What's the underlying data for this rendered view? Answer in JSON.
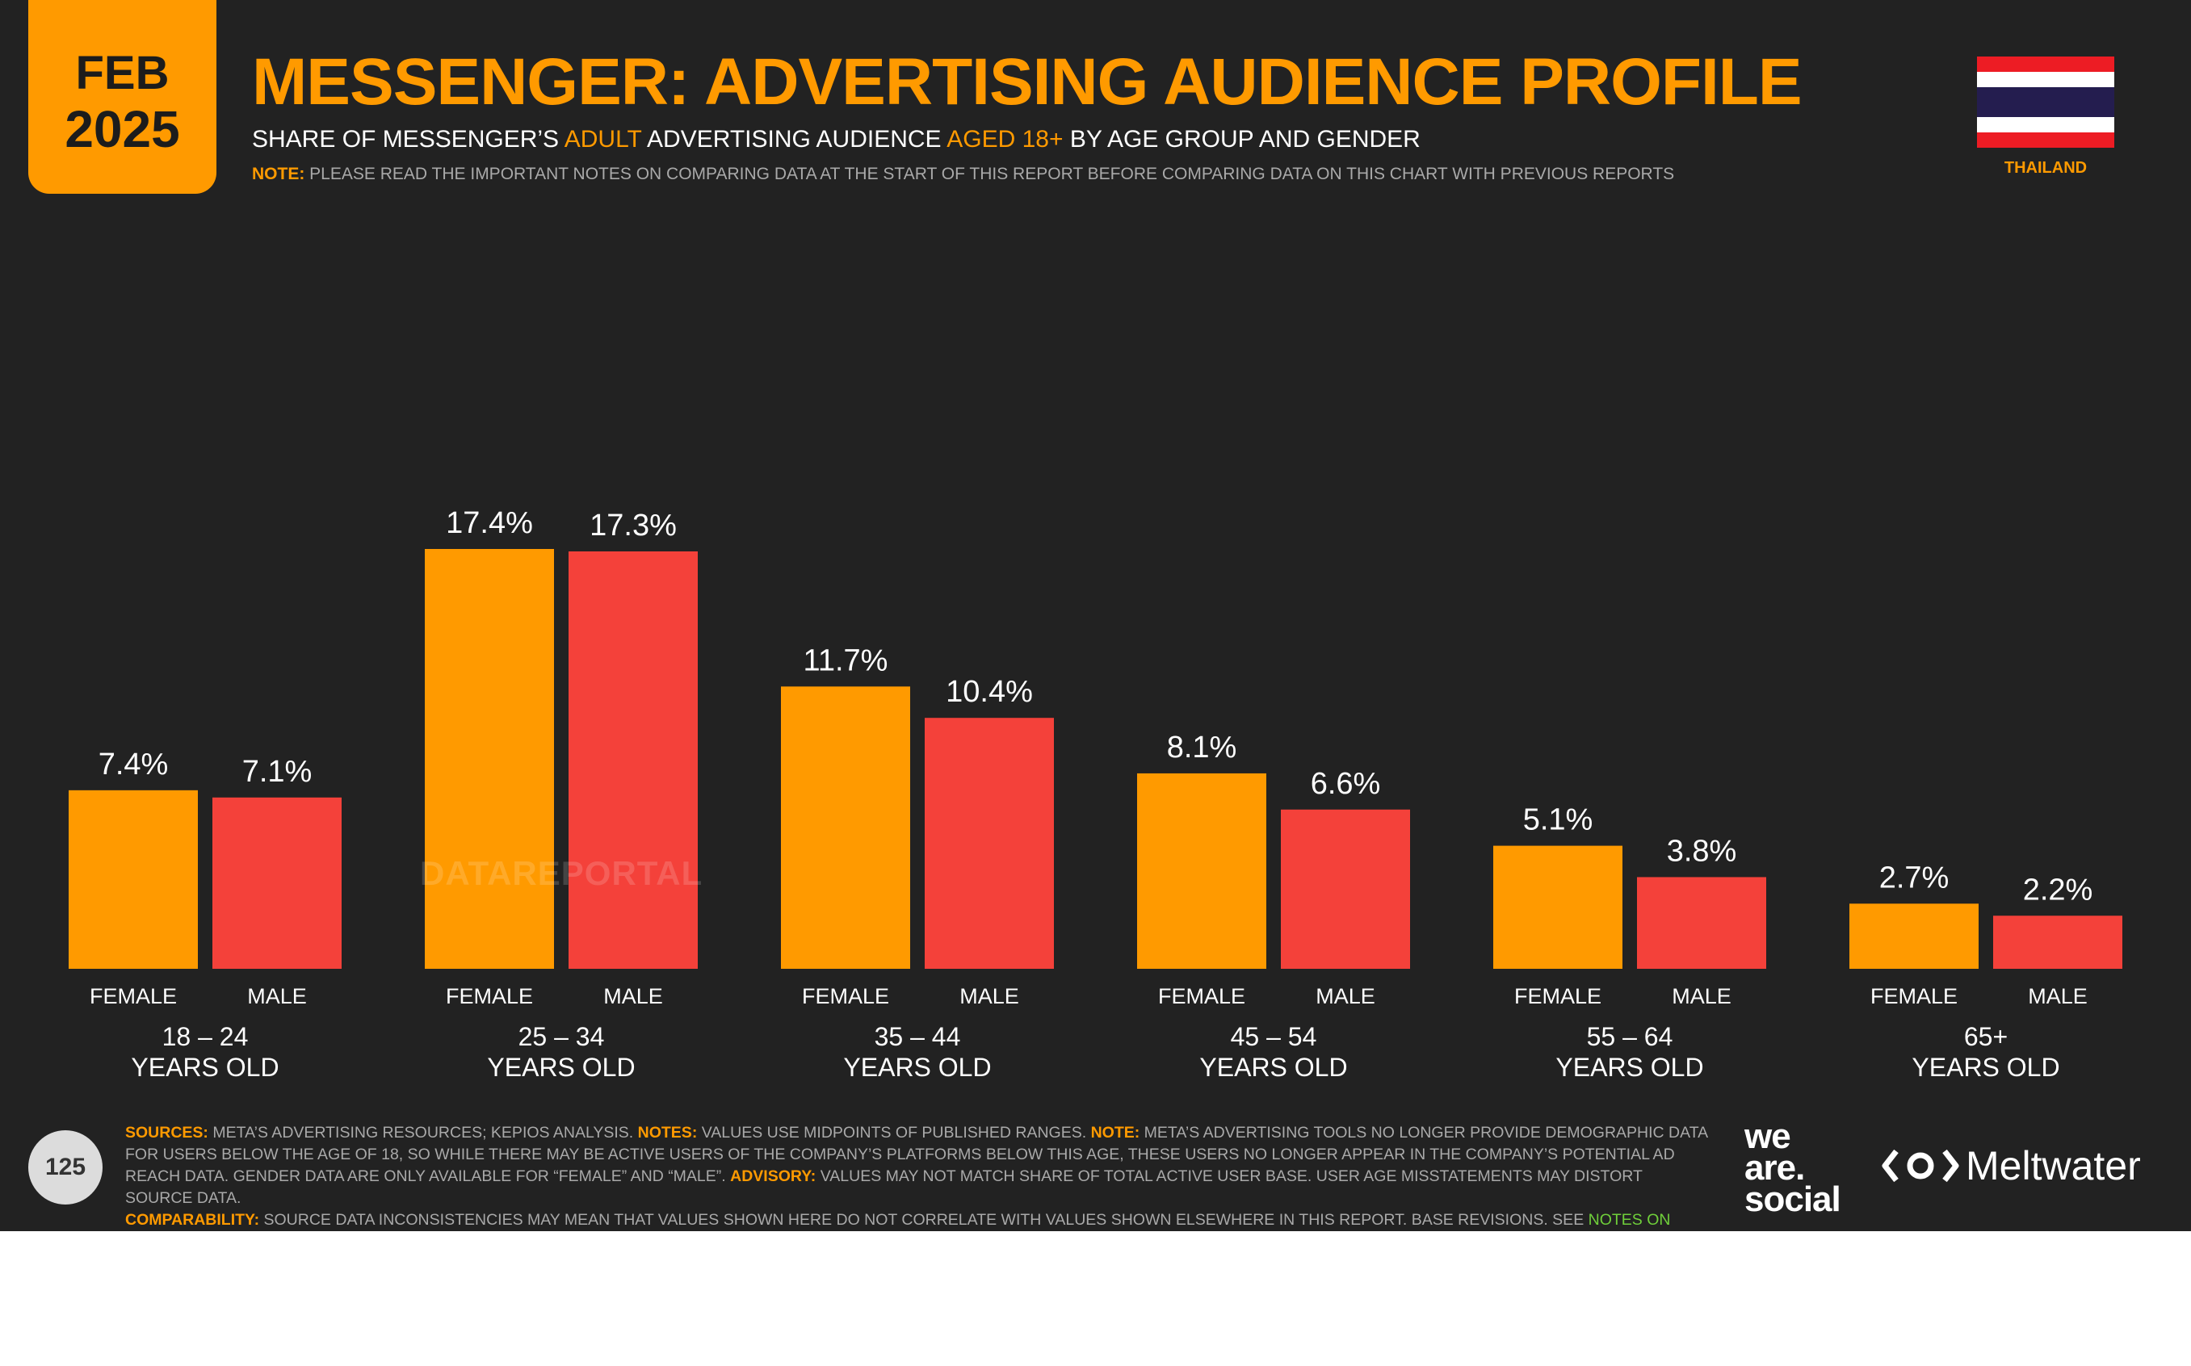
{
  "badge": {
    "month": "FEB",
    "year": "2025"
  },
  "header": {
    "title": "MESSENGER: ADVERTISING AUDIENCE PROFILE",
    "subtitle_parts": [
      "SHARE OF MESSENGER’S ",
      "ADULT",
      " ADVERTISING AUDIENCE ",
      "AGED 18+",
      " BY AGE GROUP AND GENDER"
    ],
    "note_label": "NOTE:",
    "note_text": "PLEASE READ THE IMPORTANT NOTES ON COMPARING DATA AT THE START OF THIS REPORT BEFORE COMPARING DATA ON THIS CHART WITH PREVIOUS REPORTS"
  },
  "country": {
    "name": "THAILAND",
    "flag_icon": "thailand-flag-icon"
  },
  "colors": {
    "female": "#FF9A00",
    "male": "#F4413A",
    "background": "#222222",
    "accent": "#FF9A00"
  },
  "chart_data": {
    "type": "bar",
    "categories": [
      "18 – 24 YEARS OLD",
      "25 – 34 YEARS OLD",
      "35 – 44 YEARS OLD",
      "45 – 54 YEARS OLD",
      "55 – 64 YEARS OLD",
      "65+ YEARS OLD"
    ],
    "category_lines": [
      [
        "18 – 24",
        "YEARS OLD"
      ],
      [
        "25 – 34",
        "YEARS OLD"
      ],
      [
        "35 – 44",
        "YEARS OLD"
      ],
      [
        "45 – 54",
        "YEARS OLD"
      ],
      [
        "55 – 64",
        "YEARS OLD"
      ],
      [
        "65+",
        "YEARS OLD"
      ]
    ],
    "series": [
      {
        "name": "FEMALE",
        "values": [
          7.4,
          17.4,
          11.7,
          8.1,
          5.1,
          2.7
        ],
        "labels": [
          "7.4%",
          "17.4%",
          "11.7%",
          "8.1%",
          "5.1%",
          "2.7%"
        ]
      },
      {
        "name": "MALE",
        "values": [
          7.1,
          17.3,
          10.4,
          6.6,
          3.8,
          2.2
        ],
        "labels": [
          "7.1%",
          "17.3%",
          "10.4%",
          "6.6%",
          "3.8%",
          "2.2%"
        ]
      }
    ],
    "unit": "%",
    "ylim": [
      0,
      17.4
    ],
    "grid": false
  },
  "watermark": "DATAREPORTAL",
  "footer": {
    "page_number": "125",
    "sources_label": "SOURCES:",
    "sources_text": " META’S ADVERTISING RESOURCES; KEPIOS ANALYSIS. ",
    "notes_label": "NOTES:",
    "notes_text": " VALUES USE MIDPOINTS OF PUBLISHED RANGES. ",
    "note_label": "NOTE:",
    "note_text": " META’S ADVERTISING TOOLS NO LONGER PROVIDE DEMOGRAPHIC DATA FOR USERS BELOW THE AGE OF 18, SO WHILE THERE MAY BE ACTIVE USERS OF THE COMPANY’S PLATFORMS BELOW THIS AGE, THESE USERS NO LONGER APPEAR IN THE COMPANY’S POTENTIAL AD REACH DATA. GENDER DATA ARE ONLY AVAILABLE FOR “FEMALE” AND “MALE”. ",
    "advisory_label": "ADVISORY:",
    "advisory_text": " VALUES MAY NOT MATCH SHARE OF TOTAL ACTIVE USER BASE. USER AGE MISSTATEMENTS MAY DISTORT SOURCE DATA.",
    "comparability_label": "COMPARABILITY:",
    "comparability_text": " SOURCE DATA INCONSISTENCIES MAY MEAN THAT VALUES SHOWN HERE DO NOT CORRELATE WITH VALUES SHOWN ELSEWHERE IN THIS REPORT. BASE REVISIONS. SEE ",
    "link_text": "NOTES ON DATA",
    "end_text": "."
  },
  "logos": {
    "we_are_social": [
      "we",
      "are.",
      "social"
    ],
    "meltwater": "Meltwater"
  }
}
